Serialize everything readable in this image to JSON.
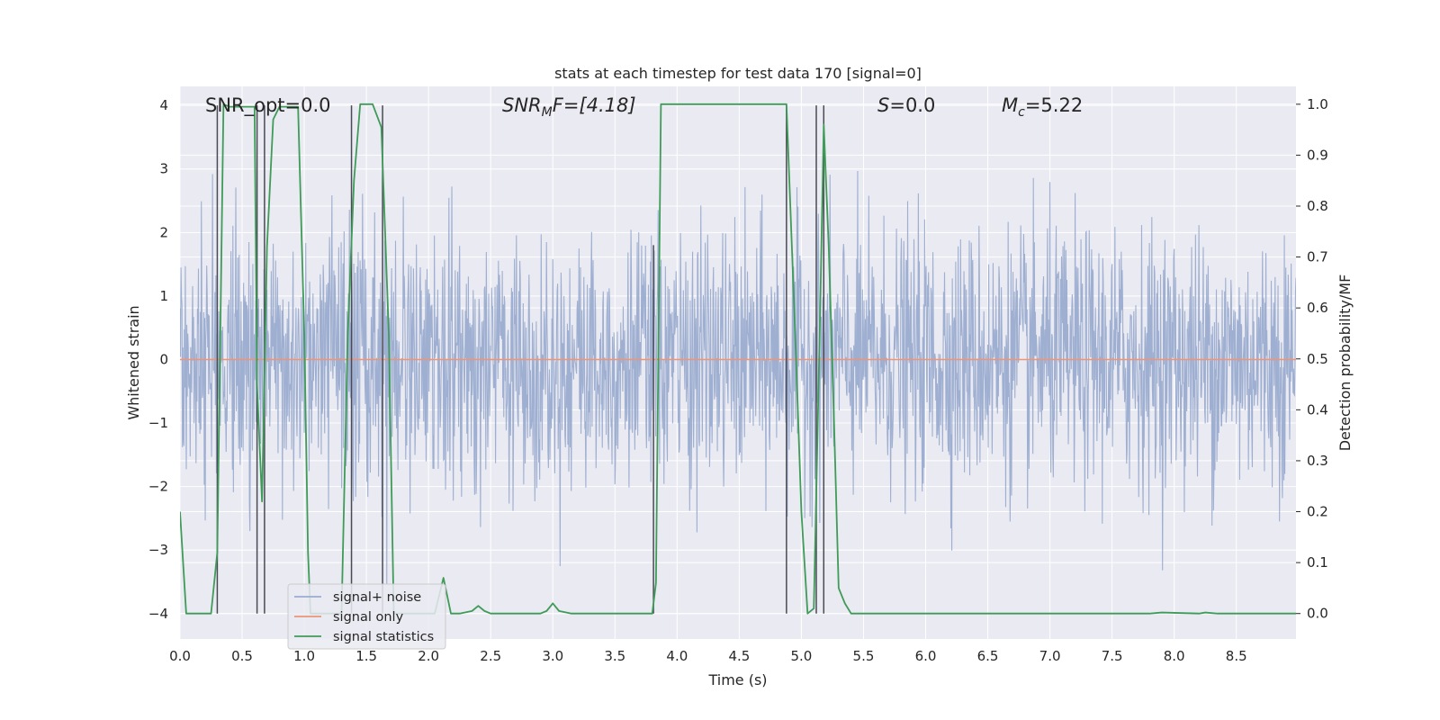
{
  "chart_data": {
    "type": "line",
    "title": "stats at each timestep for test data 170 [signal=0]",
    "xlabel": "Time (s)",
    "ylabel_left": "Whitened strain",
    "ylabel_right": "Detection probability/MF",
    "xlim": [
      0.0,
      8.98
    ],
    "ylim_left": [
      -4.4,
      4.3
    ],
    "ylim_right": [
      -0.05,
      1.035
    ],
    "x_ticks": [
      0.0,
      0.5,
      1.0,
      1.5,
      2.0,
      2.5,
      3.0,
      3.5,
      4.0,
      4.5,
      5.0,
      5.5,
      6.0,
      6.5,
      7.0,
      7.5,
      8.0,
      8.5
    ],
    "x_tick_labels": [
      "0.0",
      "0.5",
      "1.0",
      "1.5",
      "2.0",
      "2.5",
      "3.0",
      "3.5",
      "4.0",
      "4.5",
      "5.0",
      "5.5",
      "6.0",
      "6.5",
      "7.0",
      "7.5",
      "8.0",
      "8.5"
    ],
    "y_ticks_left": [
      4,
      3,
      2,
      1,
      0,
      -1,
      -2,
      -3,
      -4
    ],
    "y_tick_labels_left": [
      "4",
      "3",
      "2",
      "1",
      "0",
      "−1",
      "−2",
      "−3",
      "−4"
    ],
    "y_ticks_right": [
      1.0,
      0.9,
      0.8,
      0.7,
      0.6,
      0.5,
      0.4,
      0.3,
      0.2,
      0.1,
      0.0
    ],
    "y_tick_labels_right": [
      "1.0",
      "0.9",
      "0.8",
      "0.7",
      "0.6",
      "0.5",
      "0.4",
      "0.3",
      "0.2",
      "0.1",
      "0.0"
    ],
    "grid": true,
    "legend": {
      "placement": "lower-left",
      "entries": [
        "signal+ noise",
        "signal only",
        "signal statistics"
      ]
    },
    "annotations": {
      "snr_opt": "SNR_opt=0.0",
      "snr_mf_symbol": "SNR",
      "snr_mf_sub": "M",
      "snr_mf_rest": "F=[4.18]",
      "s_symbol": "S",
      "s_value": "=0.0",
      "mc_symbol": "M",
      "mc_sub": "c",
      "mc_value": "=5.22"
    },
    "series": [
      {
        "name": "signal+ noise",
        "axis": "left",
        "color": "#9aaccf",
        "kind": "whitened noise, approx. std 1.0, range about −4 to 4",
        "noise_std": 1.0
      },
      {
        "name": "signal only",
        "axis": "left",
        "color": "#e9967a",
        "x": [
          0.0,
          8.98
        ],
        "y": [
          0.0,
          0.0
        ]
      },
      {
        "name": "signal statistics",
        "axis": "right",
        "color": "#3f9b58",
        "x": [
          0.0,
          0.05,
          0.25,
          0.3,
          0.35,
          0.4,
          0.6,
          0.62,
          0.66,
          0.7,
          0.75,
          0.8,
          0.95,
          1.0,
          1.03,
          1.05,
          1.3,
          1.35,
          1.4,
          1.45,
          1.55,
          1.62,
          1.68,
          1.72,
          2.05,
          2.12,
          2.18,
          2.25,
          2.35,
          2.4,
          2.45,
          2.5,
          2.6,
          2.9,
          2.95,
          3.0,
          3.05,
          3.15,
          3.4,
          3.8,
          3.83,
          3.87,
          4.88,
          4.95,
          5.0,
          5.05,
          5.1,
          5.15,
          5.18,
          5.22,
          5.26,
          5.3,
          5.35,
          5.4,
          6.0,
          7.0,
          7.8,
          7.9,
          8.2,
          8.25,
          8.35,
          8.98
        ],
        "y": [
          0.2,
          0.0,
          0.0,
          0.12,
          1.0,
          0.995,
          0.995,
          0.45,
          0.22,
          0.72,
          0.97,
          0.995,
          0.995,
          0.55,
          0.12,
          0.0,
          0.0,
          0.55,
          0.85,
          1.0,
          1.0,
          0.955,
          0.55,
          0.0,
          0.0,
          0.07,
          0.0,
          0.0,
          0.005,
          0.015,
          0.005,
          0.0,
          0.0,
          0.0,
          0.005,
          0.02,
          0.005,
          0.0,
          0.0,
          0.0,
          0.06,
          1.0,
          1.0,
          0.55,
          0.2,
          0.0,
          0.01,
          0.58,
          0.96,
          0.72,
          0.4,
          0.05,
          0.02,
          0.0,
          0.0,
          0.0,
          0.0,
          0.002,
          0.0,
          0.002,
          0.0,
          0.0
        ]
      },
      {
        "name": "vertical markers",
        "axis": "left",
        "color": "#4a4a55",
        "x": [
          0.3,
          0.62,
          0.68,
          1.38,
          1.63,
          3.81,
          4.88,
          5.12,
          5.18
        ],
        "y_top": [
          4.0,
          4.0,
          4.0,
          4.0,
          4.0,
          1.8,
          4.0,
          4.0,
          4.0
        ],
        "y_bottom": [
          -4.0,
          -4.0,
          -4.0,
          -4.0,
          -4.0,
          -4.0,
          -4.0,
          -4.0,
          -4.0
        ]
      }
    ]
  }
}
